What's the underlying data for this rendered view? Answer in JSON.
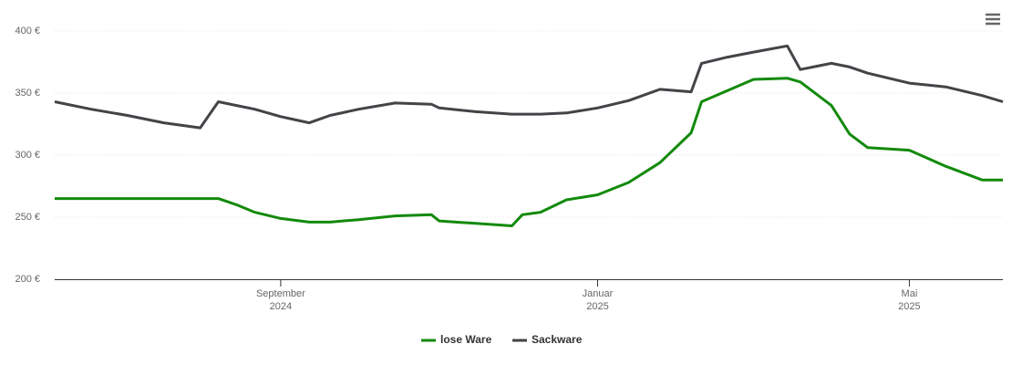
{
  "chart_data": {
    "type": "line",
    "x": [
      "2024-06-06",
      "2024-06-20",
      "2024-07-04",
      "2024-07-18",
      "2024-08-01",
      "2024-08-08",
      "2024-08-15",
      "2024-08-22",
      "2024-09-01",
      "2024-09-12",
      "2024-09-20",
      "2024-10-01",
      "2024-10-15",
      "2024-10-29",
      "2024-11-01",
      "2024-11-15",
      "2024-11-29",
      "2024-12-03",
      "2024-12-10",
      "2024-12-20",
      "2025-01-01",
      "2025-01-13",
      "2025-01-25",
      "2025-02-06",
      "2025-02-10",
      "2025-02-20",
      "2025-03-02",
      "2025-03-15",
      "2025-03-20",
      "2025-04-01",
      "2025-04-08",
      "2025-04-15",
      "2025-05-01",
      "2025-05-15",
      "2025-05-29",
      "2025-06-06"
    ],
    "series": [
      {
        "name": "lose Ware",
        "color": "#138a0c",
        "values": [
          265,
          265,
          265,
          265,
          265,
          265,
          260,
          254,
          249,
          246,
          246,
          248,
          251,
          252,
          247,
          245,
          243,
          252,
          254,
          264,
          268,
          278,
          294,
          318,
          343,
          352,
          361,
          362,
          359,
          340,
          317,
          306,
          304,
          291,
          280,
          280
        ]
      },
      {
        "name": "Sackware",
        "color": "#434348",
        "values": [
          343,
          337,
          332,
          326,
          322,
          343,
          340,
          337,
          331,
          326,
          332,
          337,
          342,
          341,
          338,
          335,
          333,
          333,
          333,
          334,
          338,
          344,
          353,
          351,
          374,
          379,
          383,
          388,
          369,
          374,
          371,
          366,
          358,
          355,
          348,
          343
        ]
      }
    ],
    "xlim": [
      "2024-06-06",
      "2025-06-06"
    ],
    "xticks": [
      {
        "value": "2024-09-01",
        "label": [
          "September",
          "2024"
        ]
      },
      {
        "value": "2025-01-01",
        "label": [
          "Januar",
          "2025"
        ]
      },
      {
        "value": "2025-05-01",
        "label": [
          "Mai",
          "2025"
        ]
      }
    ],
    "ylim": [
      200,
      400
    ],
    "yticks": [
      {
        "value": 200,
        "label": "200 €"
      },
      {
        "value": 250,
        "label": "250 €"
      },
      {
        "value": 300,
        "label": "300 €"
      },
      {
        "value": 350,
        "label": "350 €"
      },
      {
        "value": 400,
        "label": "400 €"
      }
    ],
    "grid": true,
    "legend": "bottom"
  }
}
